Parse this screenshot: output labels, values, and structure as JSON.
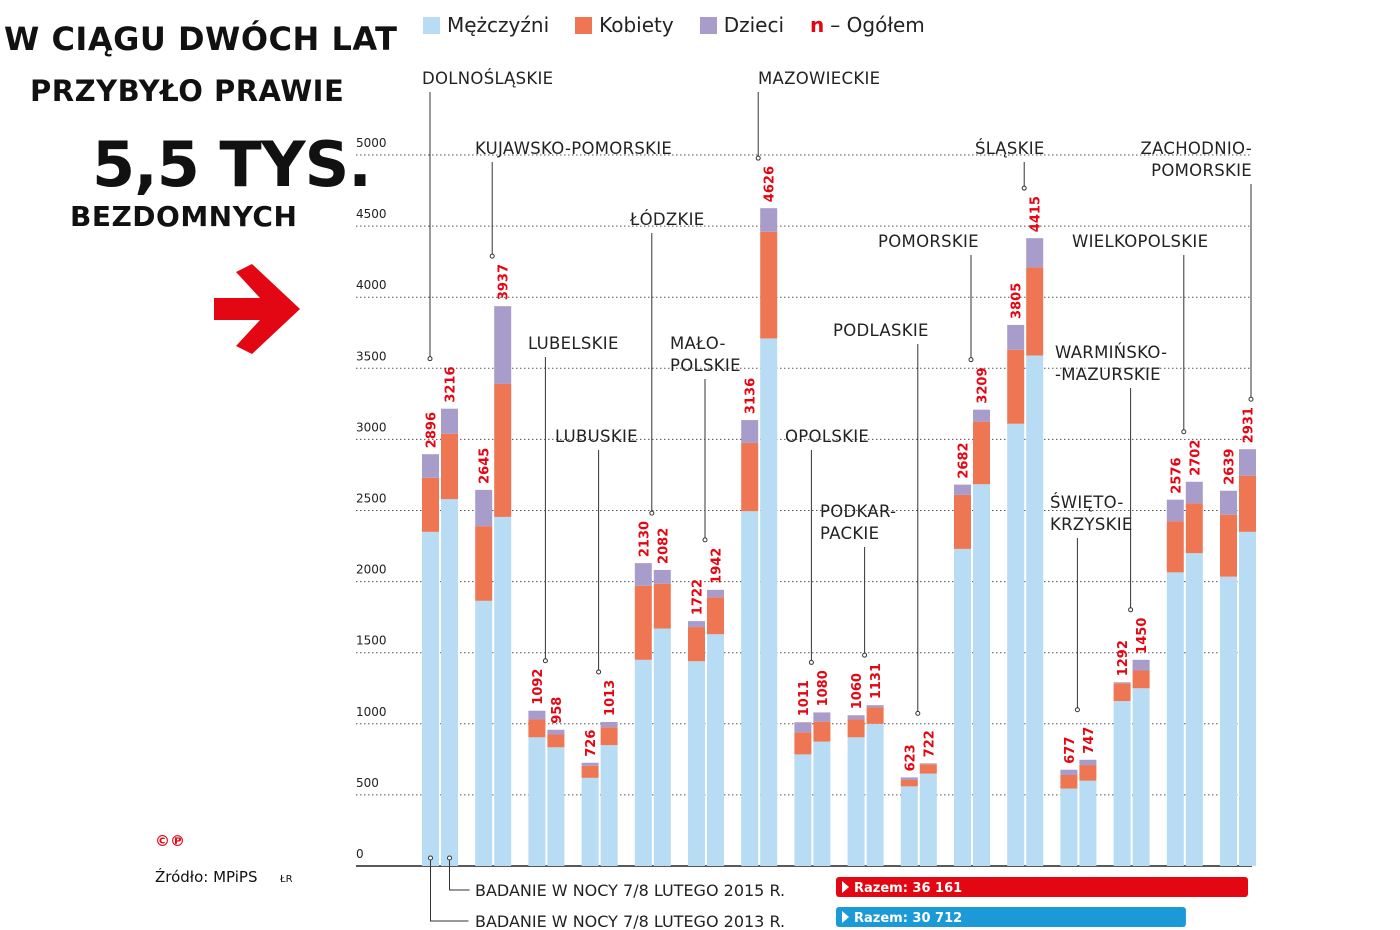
{
  "headline": {
    "line1": "W ciągu dwóch lat",
    "line2": "przybyło prawie",
    "line3": "5,5 tys.",
    "line4": "bezdomnych"
  },
  "legend": {
    "men": "Mężczyźni",
    "women": "Kobiety",
    "children": "Dzieci",
    "total_marker": "n",
    "total_label": "– Ogółem"
  },
  "colors": {
    "men": "#b7dcf3",
    "women": "#ee7653",
    "children": "#a89ccb",
    "total_text": "#e30613",
    "total_2013_bar": "#1b9ad7",
    "total_2015_bar": "#e30613"
  },
  "source": "Źródło: MPiPS",
  "author": "ŁR",
  "logo": "©℗",
  "footer": {
    "study_2015": "BADANIE W NOCY 7/8 LUTEGO 2015 R.",
    "study_2013": "BADANIE W NOCY 7/8 LUTEGO 2013 R.",
    "total_2015": "Razem: 36 161",
    "total_2013": "Razem: 30 712"
  },
  "chart_data": {
    "type": "bar",
    "stacked": true,
    "ylim": [
      0,
      5000
    ],
    "yticks": [
      0,
      500,
      1000,
      1500,
      2000,
      2500,
      3000,
      3500,
      4000,
      4500,
      5000
    ],
    "grid": true,
    "categories": [
      {
        "label": "DOLNOŚLĄSKIE",
        "label_lines": [
          "DOLNOŚLĄSKIE"
        ]
      },
      {
        "label": "KUJAWSKO-POMORSKIE",
        "label_lines": [
          "KUJAWSKO-POMORSKIE"
        ]
      },
      {
        "label": "LUBELSKIE",
        "label_lines": [
          "LUBELSKIE"
        ]
      },
      {
        "label": "LUBUSKIE",
        "label_lines": [
          "LUBUSKIE"
        ]
      },
      {
        "label": "ŁÓDZKIE",
        "label_lines": [
          "ŁÓDZKIE"
        ]
      },
      {
        "label": "MAŁOPOLSKIE",
        "label_lines": [
          "MAŁO-",
          "POLSKIE"
        ]
      },
      {
        "label": "MAZOWIECKIE",
        "label_lines": [
          "MAZOWIECKIE"
        ]
      },
      {
        "label": "OPOLSKIE",
        "label_lines": [
          "OPOLSKIE"
        ]
      },
      {
        "label": "PODKARPACKIE",
        "label_lines": [
          "PODKAR-",
          "PACKIE"
        ]
      },
      {
        "label": "PODLASKIE",
        "label_lines": [
          "PODLASKIE"
        ]
      },
      {
        "label": "POMORSKIE",
        "label_lines": [
          "POMORSKIE"
        ]
      },
      {
        "label": "ŚLĄSKIE",
        "label_lines": [
          "ŚLĄSKIE"
        ]
      },
      {
        "label": "ŚWIĘTOKRZYSKIE",
        "label_lines": [
          "ŚWIĘTO-",
          "KRZYSKIE"
        ]
      },
      {
        "label": "WARMIŃSKO-MAZURSKIE",
        "label_lines": [
          "WARMIŃSKO-",
          "-MAZURSKIE"
        ]
      },
      {
        "label": "WIELKOPOLSKIE",
        "label_lines": [
          "WIELKOPOLSKIE"
        ]
      },
      {
        "label": "ZACHODNIOPOMORSKIE",
        "label_lines": [
          "ZACHODNIO-",
          "POMORSKIE"
        ]
      }
    ],
    "series_2013": {
      "totals": [
        2896,
        2645,
        1092,
        726,
        2130,
        1722,
        3136,
        1011,
        1060,
        623,
        2682,
        3805,
        677,
        1292,
        2576,
        2639
      ],
      "men": [
        2350,
        1865,
        905,
        620,
        1450,
        1440,
        2495,
        785,
        905,
        560,
        2230,
        3110,
        545,
        1160,
        2065,
        2035
      ],
      "women": [
        380,
        525,
        125,
        85,
        520,
        240,
        480,
        155,
        125,
        45,
        380,
        520,
        95,
        125,
        360,
        435
      ]
    },
    "series_2015": {
      "totals": [
        3216,
        3937,
        958,
        1013,
        2082,
        1942,
        4626,
        1080,
        1131,
        722,
        3209,
        4415,
        747,
        1450,
        2702,
        2931
      ],
      "men": [
        2580,
        2455,
        835,
        850,
        1670,
        1630,
        3710,
        875,
        1000,
        650,
        2685,
        3590,
        600,
        1250,
        2200,
        2350
      ],
      "women": [
        460,
        935,
        90,
        125,
        315,
        260,
        750,
        140,
        115,
        65,
        440,
        620,
        110,
        125,
        350,
        395
      ]
    }
  }
}
